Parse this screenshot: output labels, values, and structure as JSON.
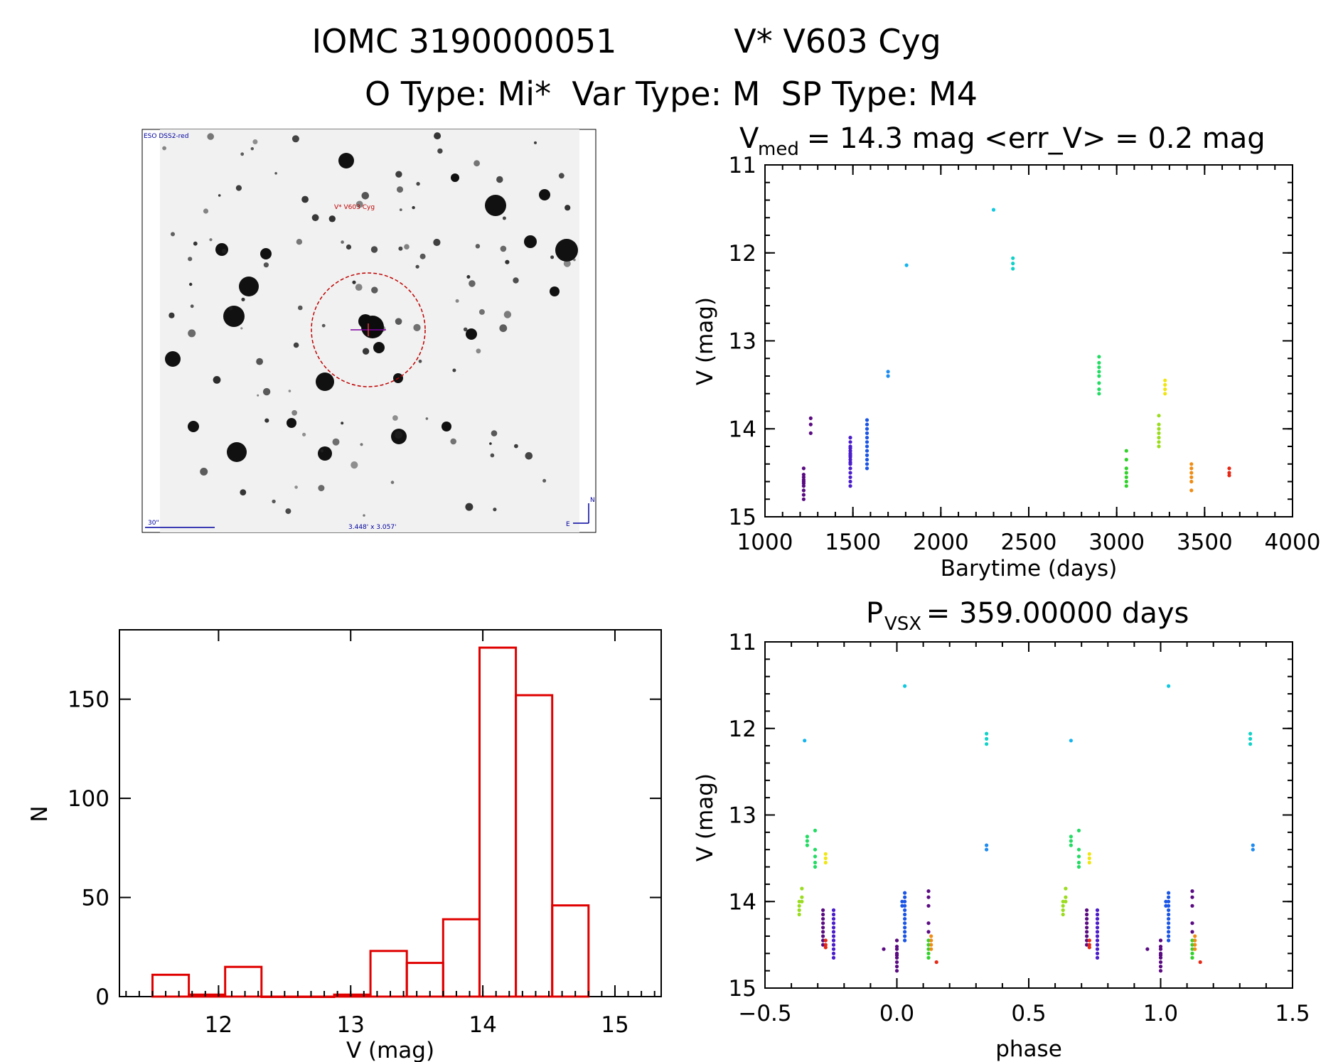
{
  "header": {
    "line1_id": "IOMC 3190000051",
    "line1_name": "V* V603 Cyg",
    "line2": "O Type: Mi*  Var Type: M  SP Type: M4"
  },
  "finder": {
    "survey": "ESO DSS2-red",
    "object": "V* V603 Cyg",
    "scale": "30\"",
    "fov": "3.448' x 3.057'",
    "north": "N",
    "east": "E",
    "colors": {
      "circle": "#c00000",
      "text_blue": "#0000a0",
      "marker": "#8000a0"
    }
  },
  "chart_data": [
    {
      "id": "lightcurve",
      "type": "scatter",
      "title_main": "V",
      "title_sub": "med",
      "title_rest": " = 14.3 mag <err_V> = 0.2 mag",
      "xlabel": "Barytime (days)",
      "ylabel": "V (mag)",
      "xlim": [
        1000,
        4000
      ],
      "ylim": [
        15,
        11
      ],
      "xticks": [
        1000,
        1500,
        2000,
        2500,
        3000,
        3500,
        4000
      ],
      "xticklabels": [
        "1000",
        "1500",
        "2000",
        "2500",
        "3000",
        "3500",
        "4000"
      ],
      "yticks": [
        11,
        12,
        13,
        14,
        15
      ],
      "yticklabels": [
        "11",
        "12",
        "13",
        "14",
        "15"
      ],
      "groups": [
        {
          "t": 1220,
          "v": [
            14.45,
            14.52,
            14.55,
            14.58,
            14.6,
            14.62,
            14.65,
            14.7,
            14.75,
            14.8
          ],
          "color": "#5a0a82"
        },
        {
          "t": 1260,
          "v": [
            13.88,
            13.95,
            14.05
          ],
          "color": "#5a0a82"
        },
        {
          "t": 1485,
          "v": [
            14.1,
            14.15,
            14.2,
            14.22,
            14.25,
            14.28,
            14.3,
            14.32,
            14.35,
            14.38,
            14.4,
            14.45,
            14.5,
            14.55,
            14.6,
            14.65
          ],
          "color": "#4a1ccc"
        },
        {
          "t": 1580,
          "v": [
            13.9,
            13.95,
            14.0,
            14.05,
            14.1,
            14.15,
            14.2,
            14.25,
            14.3,
            14.35,
            14.4,
            14.45
          ],
          "color": "#1a55e6"
        },
        {
          "t": 1700,
          "v": [
            13.35,
            13.4
          ],
          "color": "#1e8cf0"
        },
        {
          "t": 1805,
          "v": [
            12.14
          ],
          "color": "#14b4f0"
        },
        {
          "t": 2300,
          "v": [
            11.51
          ],
          "color": "#10c8e0"
        },
        {
          "t": 2410,
          "v": [
            12.06,
            12.12,
            12.18
          ],
          "color": "#10d2c8"
        },
        {
          "t": 2900,
          "v": [
            13.18,
            13.25,
            13.3,
            13.35,
            13.4,
            13.48,
            13.55,
            13.6
          ],
          "color": "#24dc64"
        },
        {
          "t": 3055,
          "v": [
            14.25,
            14.35,
            14.45,
            14.5,
            14.55,
            14.6,
            14.65
          ],
          "color": "#30d22a"
        },
        {
          "t": 3240,
          "v": [
            13.85,
            13.95,
            14.0,
            14.05,
            14.1,
            14.15,
            14.2
          ],
          "color": "#9adc1e"
        },
        {
          "t": 3275,
          "v": [
            13.45,
            13.5,
            13.55,
            13.6
          ],
          "color": "#f0e614"
        },
        {
          "t": 3425,
          "v": [
            14.4,
            14.45,
            14.5,
            14.55,
            14.6,
            14.7
          ],
          "color": "#f08c14"
        },
        {
          "t": 3640,
          "v": [
            14.45,
            14.5,
            14.53
          ],
          "color": "#e62814"
        }
      ]
    },
    {
      "id": "phased",
      "type": "scatter",
      "title_main": "P",
      "title_sub": "VSX",
      "title_rest": " = 359.00000 days",
      "xlabel": "phase",
      "ylabel": "V (mag)",
      "xlim": [
        -0.5,
        1.5
      ],
      "ylim": [
        15,
        11
      ],
      "xticks": [
        -0.5,
        0.0,
        0.5,
        1.0,
        1.5
      ],
      "xticklabels": [
        "−0.5",
        "0.0",
        "0.5",
        "1.0",
        "1.5"
      ],
      "yticks": [
        11,
        12,
        13,
        14,
        15
      ],
      "yticklabels": [
        "11",
        "12",
        "13",
        "14",
        "15"
      ],
      "groups": [
        {
          "p": -0.35,
          "v": [
            12.14
          ],
          "color": "#14b4f0"
        },
        {
          "p": 0.03,
          "v": [
            11.51
          ],
          "color": "#10c8e0"
        },
        {
          "p": 0.34,
          "v": [
            12.06,
            12.12,
            12.18
          ],
          "color": "#10d2c8"
        },
        {
          "p": 0.34,
          "v": [
            13.35,
            13.4
          ],
          "color": "#1e8cf0"
        },
        {
          "p": -0.34,
          "v": [
            13.25,
            13.3,
            13.35
          ],
          "color": "#24dc64"
        },
        {
          "p": -0.31,
          "v": [
            13.18,
            13.4,
            13.48,
            13.55,
            13.6
          ],
          "color": "#24dc64"
        },
        {
          "p": -0.27,
          "v": [
            13.45,
            13.5,
            13.55
          ],
          "color": "#f0e614"
        },
        {
          "p": -0.37,
          "v": [
            14.0,
            14.05,
            14.1,
            14.15
          ],
          "color": "#9adc1e"
        },
        {
          "p": -0.36,
          "v": [
            13.85,
            13.95,
            14.0
          ],
          "color": "#9adc1e"
        },
        {
          "p": -0.28,
          "v": [
            14.1,
            14.15,
            14.2,
            14.25,
            14.3,
            14.35,
            14.4,
            14.45,
            14.5
          ],
          "color": "#5a0a82"
        },
        {
          "p": -0.27,
          "v": [
            14.45,
            14.5,
            14.53
          ],
          "color": "#e62814"
        },
        {
          "p": -0.24,
          "v": [
            14.1,
            14.15,
            14.2,
            14.25,
            14.3,
            14.35,
            14.4,
            14.45,
            14.5,
            14.55,
            14.6,
            14.65
          ],
          "color": "#4a1ccc"
        },
        {
          "p": -0.05,
          "v": [
            14.55
          ],
          "color": "#5a0a82"
        },
        {
          "p": 0.0,
          "v": [
            14.45,
            14.52,
            14.55,
            14.6,
            14.62,
            14.65,
            14.7,
            14.75,
            14.8
          ],
          "color": "#5a0a82"
        },
        {
          "p": 0.02,
          "v": [
            14.0,
            14.05
          ],
          "color": "#1a55e6"
        },
        {
          "p": 0.03,
          "v": [
            13.9,
            13.95,
            14.0,
            14.05,
            14.1,
            14.15,
            14.2,
            14.25,
            14.3,
            14.35,
            14.4,
            14.45
          ],
          "color": "#1a55e6"
        },
        {
          "p": 0.12,
          "v": [
            13.88,
            13.95,
            14.05,
            14.25,
            14.35
          ],
          "color": "#5a0a82"
        },
        {
          "p": 0.12,
          "v": [
            14.45,
            14.5,
            14.55,
            14.6,
            14.65
          ],
          "color": "#30d22a"
        },
        {
          "p": 0.13,
          "v": [
            14.4,
            14.45,
            14.5,
            14.55
          ],
          "color": "#f08c14"
        },
        {
          "p": 0.15,
          "v": [
            14.7
          ],
          "color": "#e62814"
        },
        {
          "p": 0.66,
          "v": [
            12.14
          ],
          "color": "#14b4f0"
        },
        {
          "p": 1.03,
          "v": [
            11.51
          ],
          "color": "#10c8e0"
        },
        {
          "p": 1.34,
          "v": [
            12.06,
            12.12,
            12.18
          ],
          "color": "#10d2c8"
        },
        {
          "p": 1.35,
          "v": [
            13.35,
            13.4
          ],
          "color": "#1e8cf0"
        },
        {
          "p": 0.66,
          "v": [
            13.25,
            13.3,
            13.35
          ],
          "color": "#24dc64"
        },
        {
          "p": 0.69,
          "v": [
            13.18,
            13.4,
            13.48,
            13.55,
            13.6
          ],
          "color": "#24dc64"
        },
        {
          "p": 0.73,
          "v": [
            13.45,
            13.5,
            13.55
          ],
          "color": "#f0e614"
        },
        {
          "p": 0.63,
          "v": [
            14.0,
            14.05,
            14.1,
            14.15
          ],
          "color": "#9adc1e"
        },
        {
          "p": 0.64,
          "v": [
            13.85,
            13.95,
            14.0
          ],
          "color": "#9adc1e"
        },
        {
          "p": 0.72,
          "v": [
            14.1,
            14.15,
            14.2,
            14.25,
            14.3,
            14.35,
            14.4,
            14.45,
            14.5
          ],
          "color": "#5a0a82"
        },
        {
          "p": 0.73,
          "v": [
            14.45,
            14.5,
            14.53
          ],
          "color": "#e62814"
        },
        {
          "p": 0.76,
          "v": [
            14.1,
            14.15,
            14.2,
            14.25,
            14.3,
            14.35,
            14.4,
            14.45,
            14.5,
            14.55,
            14.6,
            14.65
          ],
          "color": "#4a1ccc"
        },
        {
          "p": 0.95,
          "v": [
            14.55
          ],
          "color": "#5a0a82"
        },
        {
          "p": 1.0,
          "v": [
            14.45,
            14.52,
            14.55,
            14.6,
            14.62,
            14.65,
            14.7,
            14.75,
            14.8
          ],
          "color": "#5a0a82"
        },
        {
          "p": 1.02,
          "v": [
            14.0,
            14.05
          ],
          "color": "#1a55e6"
        },
        {
          "p": 1.03,
          "v": [
            13.9,
            13.95,
            14.0,
            14.05,
            14.1,
            14.15,
            14.2,
            14.25,
            14.3,
            14.35,
            14.4,
            14.45
          ],
          "color": "#1a55e6"
        },
        {
          "p": 1.12,
          "v": [
            13.88,
            13.95,
            14.05,
            14.25,
            14.35
          ],
          "color": "#5a0a82"
        },
        {
          "p": 1.12,
          "v": [
            14.45,
            14.5,
            14.55,
            14.6,
            14.65
          ],
          "color": "#30d22a"
        },
        {
          "p": 1.13,
          "v": [
            14.4,
            14.45,
            14.5,
            14.55
          ],
          "color": "#f08c14"
        },
        {
          "p": 1.15,
          "v": [
            14.7
          ],
          "color": "#e62814"
        }
      ]
    },
    {
      "id": "histogram",
      "type": "bar",
      "xlabel": "V (mag)",
      "ylabel": "N",
      "xlim": [
        11.25,
        15.35
      ],
      "ylim": [
        0,
        185
      ],
      "xticks": [
        12,
        13,
        14,
        15
      ],
      "xticklabels": [
        "12",
        "13",
        "14",
        "15"
      ],
      "yticks": [
        0,
        50,
        100,
        150
      ],
      "yticklabels": [
        "0",
        "50",
        "100",
        "150"
      ],
      "bar_color": "#e00000",
      "bin_width": 0.275,
      "bins": [
        {
          "left": 11.5,
          "count": 11
        },
        {
          "left": 11.775,
          "count": 1
        },
        {
          "left": 12.05,
          "count": 15
        },
        {
          "left": 12.325,
          "count": 0
        },
        {
          "left": 12.6,
          "count": 0
        },
        {
          "left": 12.875,
          "count": 1
        },
        {
          "left": 13.15,
          "count": 23
        },
        {
          "left": 13.425,
          "count": 17
        },
        {
          "left": 13.7,
          "count": 39
        },
        {
          "left": 13.975,
          "count": 176
        },
        {
          "left": 14.25,
          "count": 152
        },
        {
          "left": 14.525,
          "count": 46
        }
      ]
    }
  ]
}
